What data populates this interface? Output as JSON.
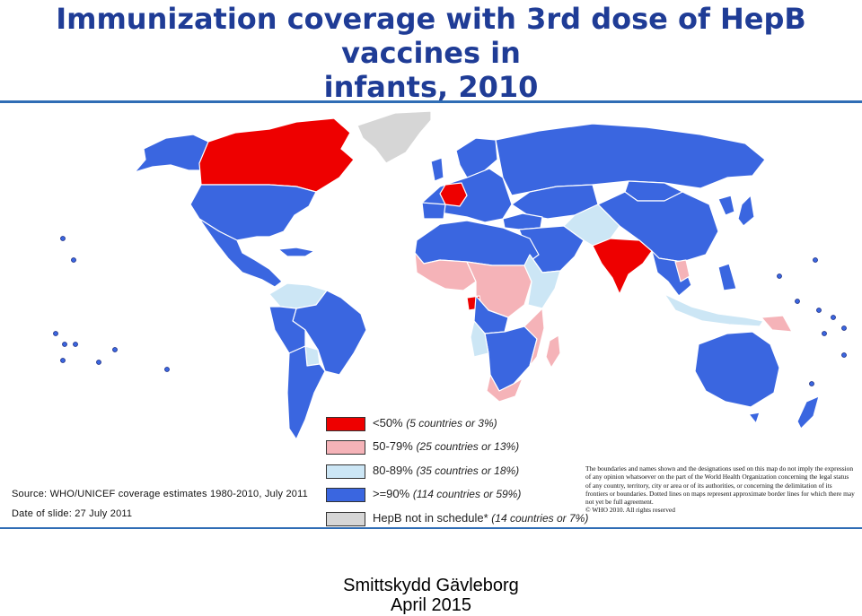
{
  "title": {
    "line1": "Immunization coverage with 3rd dose of HepB vaccines in",
    "line2": "infants, 2010"
  },
  "colors": {
    "lt50": "#ee0000",
    "c50_79": "#f5b3b8",
    "c80_89": "#cce6f5",
    "gte90": "#3a66e0",
    "not_in_schedule": "#d6d6d6",
    "brand_blue": "#1f3c96"
  },
  "legend": {
    "items": [
      {
        "label": "<50%",
        "count": "(5 countries or 3%)"
      },
      {
        "label": "50-79%",
        "count": "(25 countries or 13%)"
      },
      {
        "label": "80-89%",
        "count": "(35 countries or 18%)"
      },
      {
        "label": ">=90%",
        "count": "(114 countries or 59%)"
      },
      {
        "label": "HepB not in schedule*",
        "count": "(14 countries or 7%)"
      }
    ]
  },
  "source": "Source: WHO/UNICEF coverage estimates 1980-2010, July 2011",
  "date_of_slide": "Date of slide: 27 July 2011",
  "disclaimer": "The boundaries and names shown and the designations used on this map do not imply the expression of any opinion whatsoever on the part of the World Health Organization concerning the legal status of any country, territory, city or area or of its authorities, or concerning the delimitation of its frontiers or boundaries. Dotted lines on maps represent approximate border lines for which there may not yet be full agreement.",
  "copyright": "© WHO 2010. All rights reserved",
  "footer": {
    "org": "Smittskydd Gävleborg",
    "date": "April 2015"
  }
}
